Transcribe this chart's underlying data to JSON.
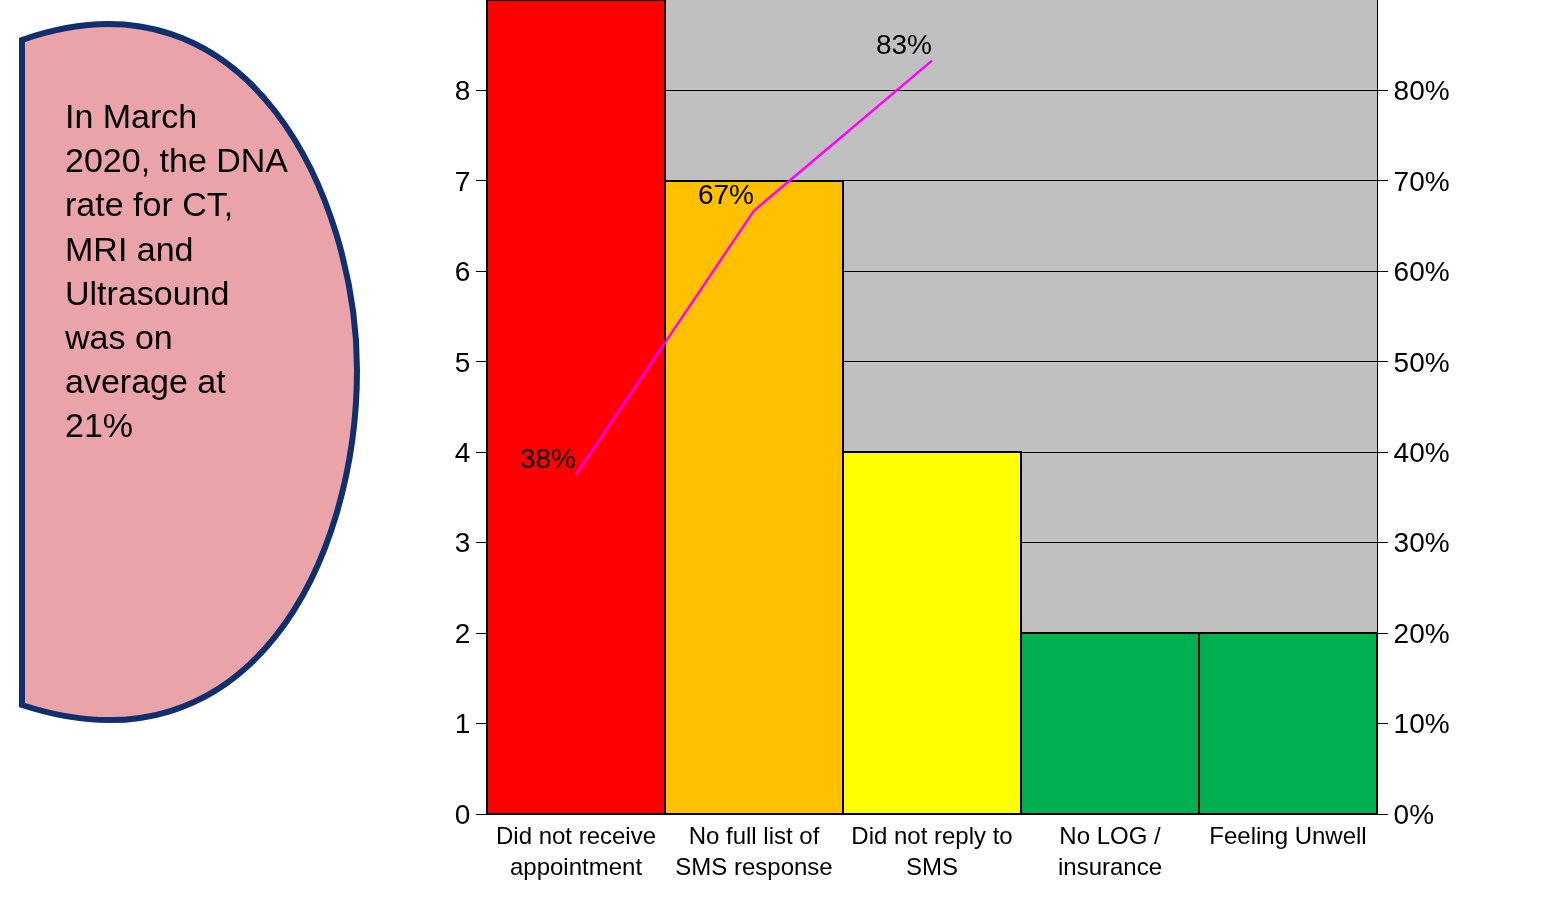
{
  "chart_data": {
    "type": "bar",
    "categories": [
      "Did not receive appointment",
      "No full list of SMS response",
      "Did not reply to SMS",
      "No LOG / insurance",
      "Feeling Unwell"
    ],
    "series": [
      {
        "colors": [
          "#ff0000",
          "#ffc000",
          "#ffff00",
          "#00b050",
          "#00b050"
        ],
        "values": [
          9,
          7,
          4,
          2,
          2
        ]
      },
      {
        "type": "line",
        "axis": "y2",
        "color": "#ff00ff",
        "values": [
          37.5,
          66.7,
          83.3,
          null,
          null
        ],
        "value_labels": [
          "38%",
          "67%",
          "83%",
          null,
          null
        ],
        "marker": "none",
        "line_style": "solid"
      }
    ],
    "ylim": [
      0,
      9
    ],
    "yticks": [
      0,
      1,
      2,
      3,
      4,
      5,
      6,
      7,
      8
    ],
    "y2lim": [
      0,
      90
    ],
    "y2ticks": [
      {
        "value": 0,
        "label": "0%"
      },
      {
        "value": 10,
        "label": "10%"
      },
      {
        "value": 20,
        "label": "20%"
      },
      {
        "value": 30,
        "label": "30%"
      },
      {
        "value": 40,
        "label": "40%"
      },
      {
        "value": 50,
        "label": "50%"
      },
      {
        "value": 60,
        "label": "60%"
      },
      {
        "value": 70,
        "label": "70%"
      },
      {
        "value": 80,
        "label": "80%"
      }
    ],
    "grid": "y",
    "legend": false,
    "annotations": [
      "In March 2020, the DNA rate for CT, MRI and Ultrasound was on average at 21%"
    ]
  }
}
